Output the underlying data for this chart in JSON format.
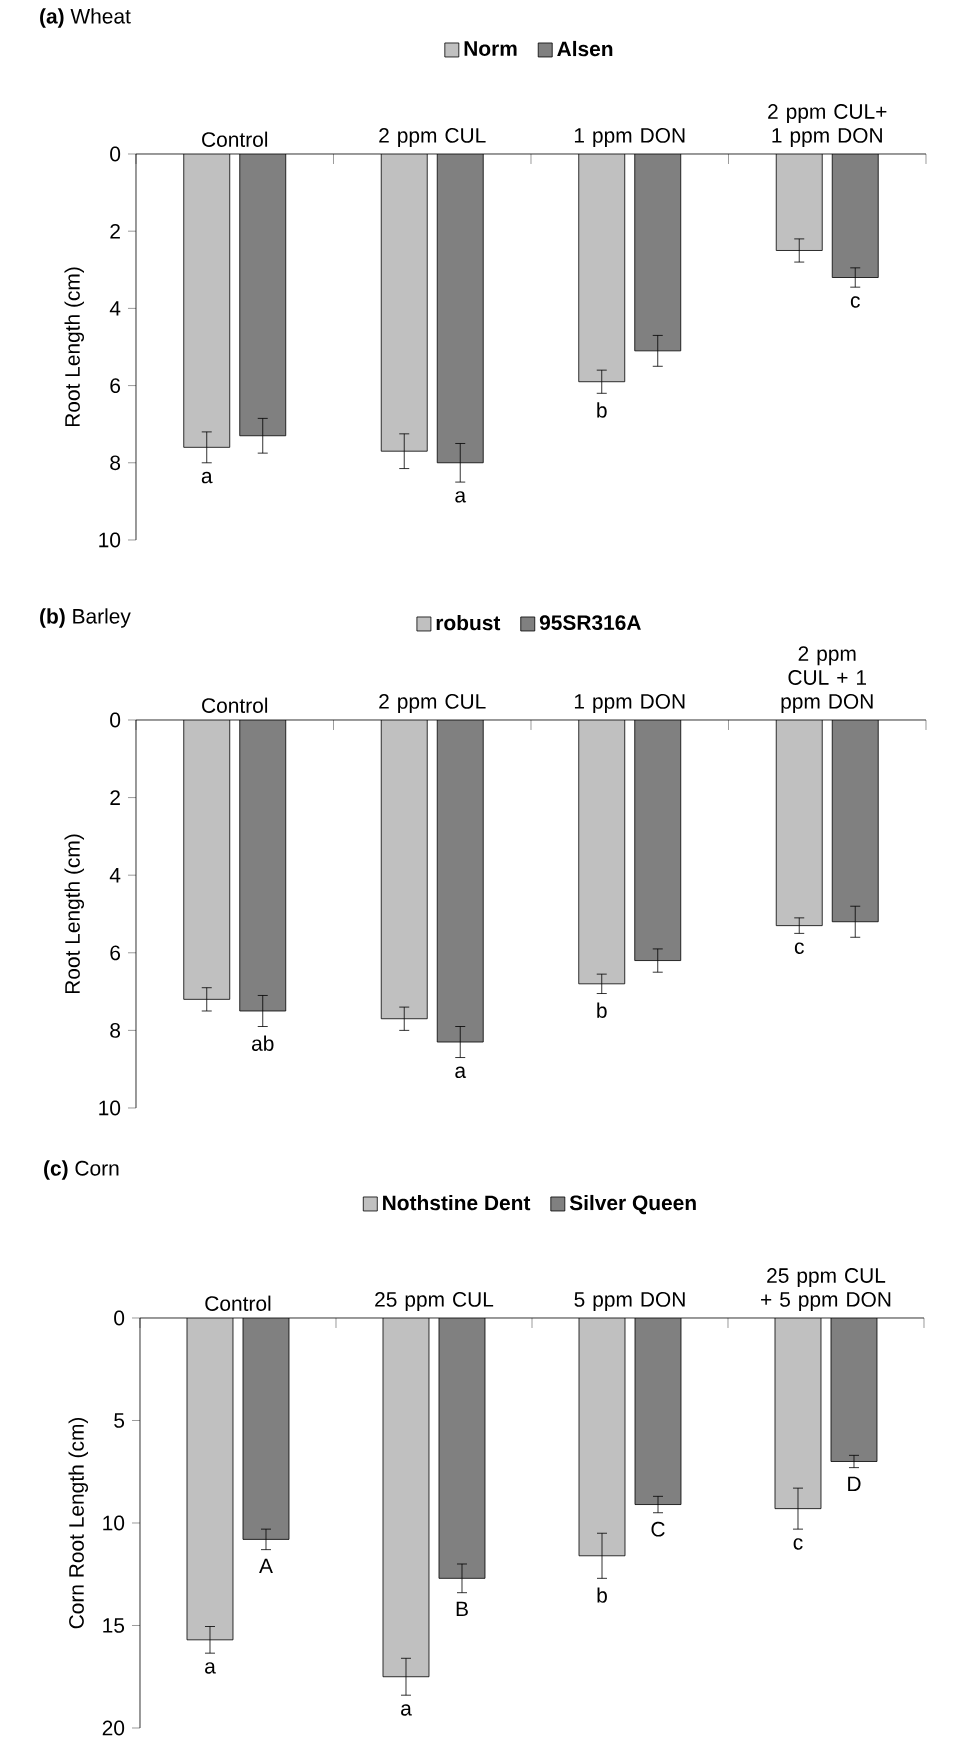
{
  "chart_data": [
    {
      "type": "bar",
      "title": "**(a)** Wheat",
      "ylabel": "Root Length (cm)",
      "categories": [
        "Control",
        "2 ppm CUL",
        "1 ppm DON",
        "2 ppm CUL+ 1 ppm DON"
      ],
      "series": [
        {
          "name": "Norm",
          "color": "#c0c0c0",
          "values": [
            7.6,
            7.7,
            5.9,
            2.5
          ],
          "errors": [
            0.4,
            0.45,
            0.3,
            0.3
          ]
        },
        {
          "name": "Alsen",
          "color": "#808080",
          "values": [
            7.3,
            8.0,
            5.1,
            3.2
          ],
          "errors": [
            0.45,
            0.5,
            0.4,
            0.25
          ]
        }
      ],
      "ylim": [
        10,
        0
      ],
      "yticks": [
        0,
        2,
        4,
        6,
        8,
        10
      ],
      "legend": "top",
      "annotations": [
        {
          "text": "a",
          "x": "Control",
          "y": 7.6
        },
        {
          "text": "a",
          "x": "2 ppm CUL",
          "y": 8.0
        },
        {
          "text": "b",
          "x": "1 ppm DON",
          "y": 5.9
        },
        {
          "text": "c",
          "x": "2 ppm CUL+ 1 ppm DON",
          "y": 3.2
        }
      ]
    },
    {
      "type": "bar",
      "title": "**(b)** Barley",
      "ylabel": "Root Length (cm)",
      "categories": [
        "Control",
        "2 ppm CUL",
        "1 ppm DON",
        "2 ppm CUL + 1 ppm DON"
      ],
      "series": [
        {
          "name": "robust",
          "color": "#c0c0c0",
          "values": [
            7.2,
            7.7,
            6.8,
            5.3
          ],
          "errors": [
            0.3,
            0.3,
            0.25,
            0.2
          ]
        },
        {
          "name": "95SR316A",
          "color": "#808080",
          "values": [
            7.5,
            8.3,
            6.2,
            5.2
          ],
          "errors": [
            0.4,
            0.4,
            0.3,
            0.4
          ]
        }
      ],
      "ylim": [
        10,
        0
      ],
      "yticks": [
        0,
        2,
        4,
        6,
        8,
        10
      ],
      "legend": "top",
      "annotations": [
        {
          "text": "ab",
          "x": "Control",
          "y": 7.5
        },
        {
          "text": "a",
          "x": "2 ppm CUL",
          "y": 8.3
        },
        {
          "text": "b",
          "x": "1 ppm DON",
          "y": 6.8
        },
        {
          "text": "c",
          "x": "2 ppm CUL + 1 ppm DON",
          "y": 5.3
        }
      ]
    },
    {
      "type": "bar",
      "title": "**(c)** Corn",
      "ylabel": "Corn Root Length (cm)",
      "categories": [
        "Control",
        "25 ppm CUL",
        "5 ppm DON",
        "25 ppm CUL + 5 ppm DON"
      ],
      "series": [
        {
          "name": "Nothstine Dent",
          "color": "#c0c0c0",
          "values": [
            15.7,
            17.5,
            11.6,
            9.3
          ],
          "errors": [
            0.65,
            0.9,
            1.1,
            1.0
          ]
        },
        {
          "name": "Silver Queen",
          "color": "#808080",
          "values": [
            10.8,
            12.7,
            9.1,
            7.0
          ],
          "errors": [
            0.5,
            0.7,
            0.4,
            0.3
          ]
        }
      ],
      "ylim": [
        20,
        0
      ],
      "yticks": [
        0,
        5,
        10,
        15,
        20
      ],
      "legend": "top",
      "annotations": [
        {
          "text": "a",
          "x": "Control",
          "y": 15.7
        },
        {
          "text": "A",
          "x": "Control",
          "y": 10.8
        },
        {
          "text": "a",
          "x": "25 ppm CUL",
          "y": 17.5
        },
        {
          "text": "B",
          "x": "25 ppm CUL",
          "y": 12.7
        },
        {
          "text": "b",
          "x": "5 ppm DON",
          "y": 11.6
        },
        {
          "text": "C",
          "x": "5 ppm DON",
          "y": 9.1
        },
        {
          "text": "c",
          "x": "25 ppm CUL + 5 ppm DON",
          "y": 9.3
        },
        {
          "text": "D",
          "x": "25 ppm CUL + 5 ppm DON",
          "y": 7.0
        }
      ]
    }
  ]
}
